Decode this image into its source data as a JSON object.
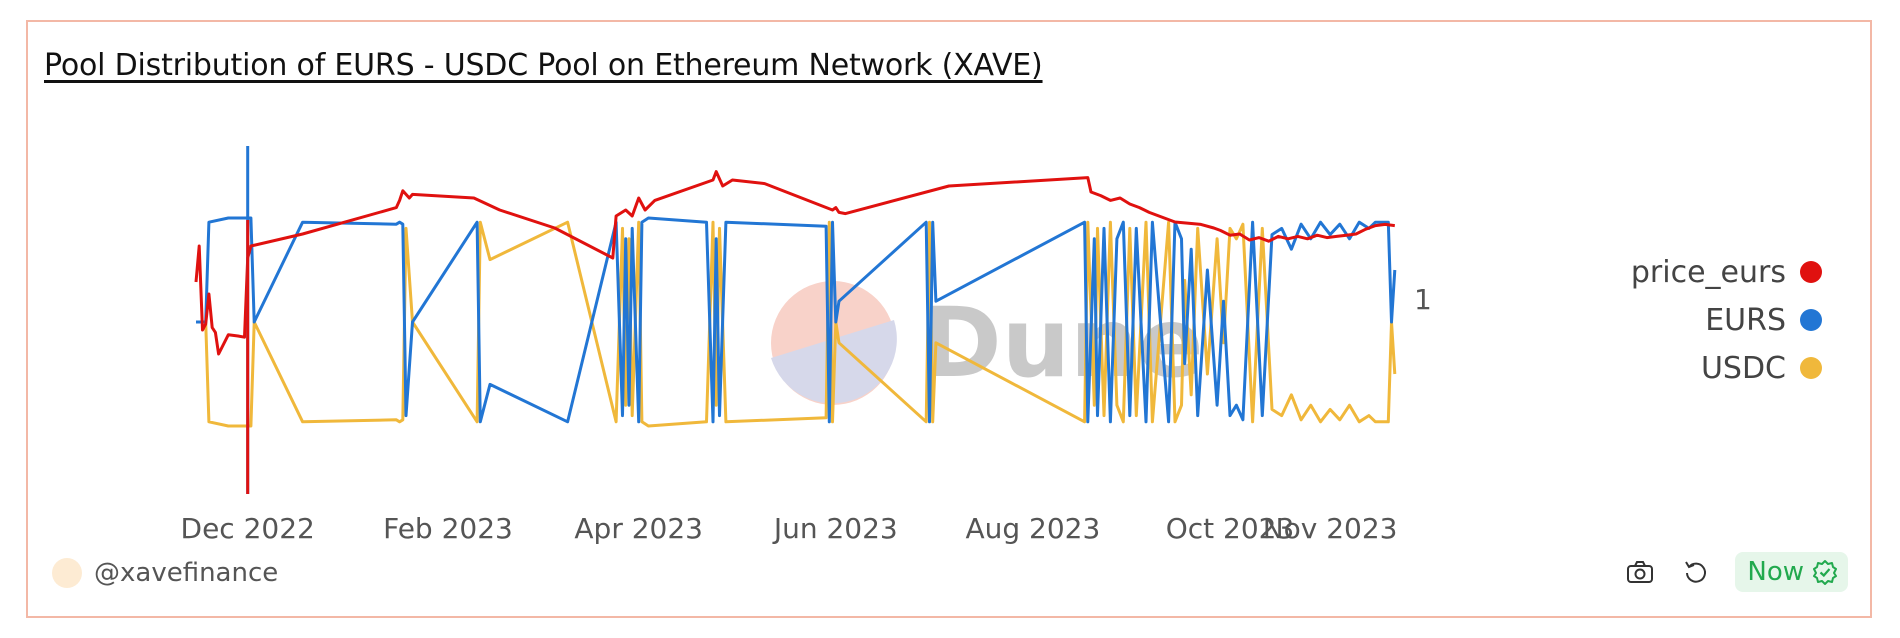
{
  "title": "Pool Distribution of EURS - USDC Pool on Ethereum Network (XAVE)",
  "watermark": "Dune",
  "footer": {
    "handle": "@xavefinance",
    "now_label": "Now",
    "icons": [
      "camera-icon",
      "refresh-icon",
      "check-badge-icon"
    ]
  },
  "legend": [
    {
      "name": "price_eurs",
      "color": "#e0110f"
    },
    {
      "name": "EURS",
      "color": "#2276d4"
    },
    {
      "name": "USDC",
      "color": "#f0b83b"
    }
  ],
  "chart_data": {
    "type": "line",
    "x_type": "date",
    "x_ticks": [
      "Dec 2022",
      "Feb 2023",
      "Apr 2023",
      "Jun 2023",
      "Aug 2023",
      "Oct 2023",
      "Nov 2023"
    ],
    "x_tick_dates": [
      "2022-12-01",
      "2023-02-01",
      "2023-04-01",
      "2023-06-01",
      "2023-08-01",
      "2023-10-01",
      "2023-11-01"
    ],
    "y_ticks": [
      "1"
    ],
    "xlim": [
      "2022-11-15",
      "2023-11-22"
    ],
    "grid": false,
    "legend_position": "right",
    "series": [
      {
        "name": "price_eurs",
        "color": "#e0110f",
        "axis": "right",
        "ylim": [
          1.0,
          1.15
        ],
        "x": [
          "2022-11-15",
          "2022-11-16",
          "2022-11-17",
          "2022-11-18",
          "2022-11-19",
          "2022-11-20",
          "2022-11-21",
          "2022-11-22",
          "2022-11-25",
          "2022-11-28",
          "2022-11-30",
          "2022-12-01",
          "2022-12-02",
          "2022-12-18",
          "2023-01-16",
          "2023-01-17",
          "2023-01-18",
          "2023-01-20",
          "2023-01-21",
          "2023-02-09",
          "2023-02-17",
          "2023-03-06",
          "2023-03-24",
          "2023-03-25",
          "2023-03-28",
          "2023-03-30",
          "2023-04-01",
          "2023-04-03",
          "2023-04-06",
          "2023-04-24",
          "2023-04-25",
          "2023-04-27",
          "2023-04-30",
          "2023-05-10",
          "2023-05-31",
          "2023-06-01",
          "2023-06-02",
          "2023-06-04",
          "2023-07-06",
          "2023-08-18",
          "2023-08-19",
          "2023-08-22",
          "2023-08-25",
          "2023-08-28",
          "2023-08-31",
          "2023-09-03",
          "2023-09-06",
          "2023-09-14",
          "2023-09-22",
          "2023-09-26",
          "2023-09-28",
          "2023-10-01",
          "2023-10-04",
          "2023-10-07",
          "2023-10-10",
          "2023-10-13",
          "2023-10-16",
          "2023-10-19",
          "2023-10-22",
          "2023-10-25",
          "2023-10-28",
          "2023-10-31",
          "2023-11-03",
          "2023-11-06",
          "2023-11-09",
          "2023-11-12",
          "2023-11-15",
          "2023-11-18",
          "2023-11-21"
        ],
        "values": [
          1.04,
          1.07,
          1.0,
          1.005,
          1.03,
          1.002,
          0.998,
          0.98,
          0.996,
          0.995,
          0.994,
          1.06,
          1.07,
          1.08,
          1.102,
          1.108,
          1.116,
          1.11,
          1.113,
          1.11,
          1.1,
          1.085,
          1.06,
          1.095,
          1.1,
          1.095,
          1.11,
          1.1,
          1.108,
          1.125,
          1.132,
          1.12,
          1.125,
          1.122,
          1.1,
          1.102,
          1.098,
          1.097,
          1.12,
          1.127,
          1.115,
          1.112,
          1.108,
          1.11,
          1.105,
          1.102,
          1.098,
          1.09,
          1.088,
          1.085,
          1.083,
          1.079,
          1.08,
          1.075,
          1.077,
          1.074,
          1.078,
          1.076,
          1.078,
          1.076,
          1.079,
          1.077,
          1.078,
          1.079,
          1.08,
          1.084,
          1.087,
          1.088,
          1.087
        ]
      },
      {
        "name": "EURS",
        "color": "#2276d4",
        "axis": "left",
        "ylim": [
          0,
          1
        ],
        "x": [
          "2022-11-15",
          "2022-11-16",
          "2022-11-18",
          "2022-11-19",
          "2022-11-25",
          "2022-11-28",
          "2022-11-30",
          "2022-12-01",
          "2022-12-02",
          "2022-12-03",
          "2022-12-18",
          "2023-01-16",
          "2023-01-17",
          "2023-01-18",
          "2023-01-19",
          "2023-01-21",
          "2023-02-10",
          "2023-02-11",
          "2023-02-14",
          "2023-03-10",
          "2023-03-25",
          "2023-03-27",
          "2023-03-28",
          "2023-03-29",
          "2023-03-30",
          "2023-04-01",
          "2023-04-02",
          "2023-04-04",
          "2023-04-22",
          "2023-04-24",
          "2023-04-25",
          "2023-04-26",
          "2023-04-28",
          "2023-05-29",
          "2023-05-30",
          "2023-05-31",
          "2023-06-01",
          "2023-06-02",
          "2023-06-29",
          "2023-06-30",
          "2023-07-01",
          "2023-07-02",
          "2023-08-17",
          "2023-08-18",
          "2023-08-20",
          "2023-08-21",
          "2023-08-23",
          "2023-08-25",
          "2023-08-27",
          "2023-08-29",
          "2023-08-31",
          "2023-09-02",
          "2023-09-05",
          "2023-09-07",
          "2023-09-12",
          "2023-09-14",
          "2023-09-16",
          "2023-09-17",
          "2023-09-19",
          "2023-09-21",
          "2023-09-24",
          "2023-09-27",
          "2023-09-29",
          "2023-10-01",
          "2023-10-03",
          "2023-10-05",
          "2023-10-08",
          "2023-10-11",
          "2023-10-14",
          "2023-10-17",
          "2023-10-20",
          "2023-10-23",
          "2023-10-26",
          "2023-10-29",
          "2023-11-01",
          "2023-11-04",
          "2023-11-07",
          "2023-11-10",
          "2023-11-13",
          "2023-11-15",
          "2023-11-16",
          "2023-11-17",
          "2023-11-18",
          "2023-11-19",
          "2023-11-20",
          "2023-11-21"
        ],
        "values": [
          0.5,
          0.5,
          0.5,
          0.98,
          1.0,
          1.0,
          1.0,
          1.0,
          1.0,
          0.5,
          0.98,
          0.97,
          0.98,
          0.97,
          0.05,
          0.5,
          0.98,
          0.02,
          0.2,
          0.02,
          0.98,
          0.05,
          0.9,
          0.1,
          0.95,
          0.02,
          0.98,
          1.0,
          0.98,
          0.02,
          0.9,
          0.05,
          0.98,
          0.96,
          0.02,
          0.98,
          0.5,
          0.6,
          0.98,
          0.02,
          0.98,
          0.6,
          0.98,
          0.02,
          0.9,
          0.05,
          0.95,
          0.02,
          0.9,
          0.98,
          0.05,
          0.95,
          0.02,
          0.98,
          0.02,
          0.98,
          0.9,
          0.3,
          0.85,
          0.05,
          0.75,
          0.1,
          0.6,
          0.05,
          0.1,
          0.03,
          0.98,
          0.05,
          0.92,
          0.95,
          0.85,
          0.97,
          0.9,
          0.98,
          0.92,
          0.97,
          0.9,
          0.98,
          0.95,
          0.98,
          0.98,
          0.98,
          0.98,
          0.98,
          0.5,
          0.75
        ]
      },
      {
        "name": "USDC",
        "color": "#f0b83b",
        "axis": "left",
        "ylim": [
          0,
          1
        ],
        "x": [
          "2022-11-15",
          "2022-11-16",
          "2022-11-18",
          "2022-11-19",
          "2022-11-25",
          "2022-11-28",
          "2022-11-30",
          "2022-12-01",
          "2022-12-02",
          "2022-12-03",
          "2022-12-18",
          "2023-01-16",
          "2023-01-17",
          "2023-01-18",
          "2023-01-19",
          "2023-01-21",
          "2023-02-10",
          "2023-02-11",
          "2023-02-14",
          "2023-03-10",
          "2023-03-25",
          "2023-03-27",
          "2023-03-28",
          "2023-03-29",
          "2023-03-30",
          "2023-04-01",
          "2023-04-02",
          "2023-04-04",
          "2023-04-22",
          "2023-04-24",
          "2023-04-25",
          "2023-04-26",
          "2023-04-28",
          "2023-05-29",
          "2023-05-30",
          "2023-05-31",
          "2023-06-01",
          "2023-06-02",
          "2023-06-29",
          "2023-06-30",
          "2023-07-01",
          "2023-07-02",
          "2023-08-17",
          "2023-08-18",
          "2023-08-20",
          "2023-08-21",
          "2023-08-23",
          "2023-08-25",
          "2023-08-27",
          "2023-08-29",
          "2023-08-31",
          "2023-09-02",
          "2023-09-05",
          "2023-09-07",
          "2023-09-12",
          "2023-09-14",
          "2023-09-16",
          "2023-09-17",
          "2023-09-19",
          "2023-09-21",
          "2023-09-24",
          "2023-09-27",
          "2023-09-29",
          "2023-10-01",
          "2023-10-03",
          "2023-10-05",
          "2023-10-08",
          "2023-10-11",
          "2023-10-14",
          "2023-10-17",
          "2023-10-20",
          "2023-10-23",
          "2023-10-26",
          "2023-10-29",
          "2023-11-01",
          "2023-11-04",
          "2023-11-07",
          "2023-11-10",
          "2023-11-13",
          "2023-11-15",
          "2023-11-16",
          "2023-11-17",
          "2023-11-18",
          "2023-11-19",
          "2023-11-20",
          "2023-11-21"
        ],
        "values": [
          0.5,
          0.5,
          0.5,
          0.02,
          0.0,
          0.0,
          0.0,
          0.0,
          0.0,
          0.5,
          0.02,
          0.03,
          0.02,
          0.03,
          0.95,
          0.5,
          0.02,
          0.98,
          0.8,
          0.98,
          0.02,
          0.95,
          0.1,
          0.9,
          0.05,
          0.98,
          0.02,
          0.0,
          0.02,
          0.98,
          0.1,
          0.95,
          0.02,
          0.04,
          0.98,
          0.02,
          0.5,
          0.4,
          0.02,
          0.98,
          0.02,
          0.4,
          0.02,
          0.98,
          0.1,
          0.95,
          0.05,
          0.98,
          0.1,
          0.02,
          0.95,
          0.05,
          0.98,
          0.02,
          0.98,
          0.02,
          0.1,
          0.7,
          0.15,
          0.95,
          0.25,
          0.9,
          0.4,
          0.95,
          0.9,
          0.97,
          0.02,
          0.95,
          0.08,
          0.05,
          0.15,
          0.03,
          0.1,
          0.02,
          0.08,
          0.03,
          0.1,
          0.02,
          0.05,
          0.02,
          0.02,
          0.02,
          0.02,
          0.02,
          0.5,
          0.25
        ]
      }
    ]
  }
}
